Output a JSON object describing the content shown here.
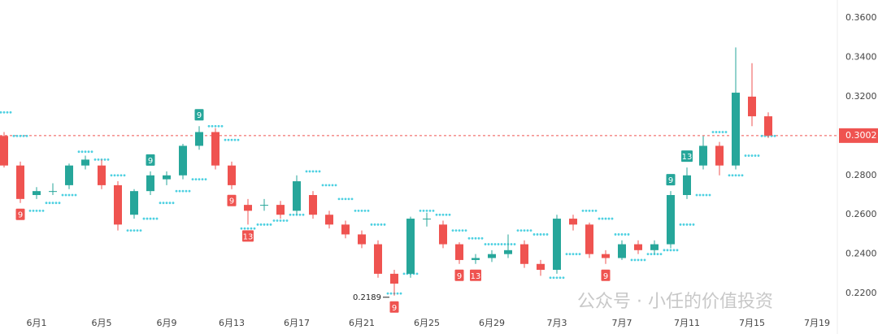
{
  "chart_data": {
    "type": "candlestick",
    "x": [
      -1,
      0,
      1,
      2,
      3,
      4,
      5,
      6,
      7,
      8,
      9,
      10,
      11,
      12,
      13,
      14,
      15,
      16,
      17,
      18,
      19,
      20,
      21,
      22,
      23,
      24,
      25,
      26,
      27,
      28,
      29,
      30,
      31,
      32,
      33,
      34,
      35,
      36,
      37,
      38,
      39,
      40,
      41,
      42,
      43,
      44,
      45,
      46
    ],
    "open": [
      0.3,
      0.285,
      0.27,
      0.272,
      0.275,
      0.285,
      0.285,
      0.275,
      0.26,
      0.272,
      0.278,
      0.28,
      0.295,
      0.302,
      0.285,
      0.265,
      0.265,
      0.265,
      0.262,
      0.27,
      0.26,
      0.255,
      0.25,
      0.245,
      0.23,
      0.23,
      0.258,
      0.255,
      0.245,
      0.237,
      0.238,
      0.24,
      0.245,
      0.235,
      0.232,
      0.258,
      0.255,
      0.24,
      0.238,
      0.245,
      0.242,
      0.245,
      0.27,
      0.285,
      0.295,
      0.285,
      0.32,
      0.31
    ],
    "high": [
      0.302,
      0.287,
      0.274,
      0.276,
      0.286,
      0.29,
      0.288,
      0.277,
      0.273,
      0.282,
      0.282,
      0.296,
      0.305,
      0.304,
      0.287,
      0.268,
      0.268,
      0.267,
      0.28,
      0.272,
      0.262,
      0.257,
      0.252,
      0.247,
      0.232,
      0.259,
      0.261,
      0.257,
      0.246,
      0.24,
      0.242,
      0.25,
      0.247,
      0.237,
      0.26,
      0.26,
      0.256,
      0.242,
      0.247,
      0.247,
      0.247,
      0.272,
      0.284,
      0.3,
      0.297,
      0.345,
      0.337,
      0.312
    ],
    "low": [
      0.284,
      0.266,
      0.268,
      0.27,
      0.273,
      0.283,
      0.273,
      0.252,
      0.258,
      0.27,
      0.275,
      0.278,
      0.293,
      0.283,
      0.273,
      0.255,
      0.262,
      0.258,
      0.26,
      0.258,
      0.253,
      0.248,
      0.243,
      0.228,
      0.2189,
      0.228,
      0.254,
      0.243,
      0.235,
      0.235,
      0.236,
      0.238,
      0.233,
      0.229,
      0.23,
      0.252,
      0.238,
      0.235,
      0.237,
      0.24,
      0.24,
      0.243,
      0.268,
      0.283,
      0.28,
      0.283,
      0.305,
      0.299
    ],
    "close": [
      0.285,
      0.268,
      0.272,
      0.272,
      0.285,
      0.288,
      0.275,
      0.255,
      0.272,
      0.28,
      0.28,
      0.295,
      0.302,
      0.285,
      0.275,
      0.262,
      0.265,
      0.26,
      0.277,
      0.26,
      0.255,
      0.25,
      0.245,
      0.23,
      0.225,
      0.258,
      0.258,
      0.245,
      0.237,
      0.238,
      0.24,
      0.242,
      0.235,
      0.232,
      0.258,
      0.255,
      0.24,
      0.238,
      0.245,
      0.242,
      0.245,
      0.27,
      0.28,
      0.295,
      0.285,
      0.322,
      0.31,
      0.3002
    ],
    "up_color": "#26a69a",
    "down_color": "#ef5350",
    "sar": {
      "color": "#4dd0e1",
      "values": [
        0.312,
        0.3,
        0.262,
        0.266,
        0.27,
        0.292,
        0.288,
        0.28,
        0.252,
        0.258,
        0.266,
        0.272,
        0.278,
        0.305,
        0.298,
        0.253,
        0.255,
        0.257,
        0.26,
        0.282,
        0.275,
        0.268,
        0.262,
        0.255,
        0.22,
        0.23,
        0.262,
        0.26,
        0.252,
        0.248,
        0.245,
        0.245,
        0.252,
        0.25,
        0.228,
        0.24,
        0.262,
        0.258,
        0.25,
        0.237,
        0.24,
        0.242,
        0.255,
        0.27,
        0.302,
        0.28,
        0.29,
        0.3
      ]
    },
    "td_labels": [
      {
        "x": 0,
        "count": 9,
        "side": "below"
      },
      {
        "x": 8,
        "count": 9,
        "side": "above"
      },
      {
        "x": 11,
        "count": 9,
        "side": "above"
      },
      {
        "x": 13,
        "count": 9,
        "side": "below"
      },
      {
        "x": 14,
        "count": 13,
        "side": "below"
      },
      {
        "x": 23,
        "count": 9,
        "side": "below"
      },
      {
        "x": 27,
        "count": 9,
        "side": "below"
      },
      {
        "x": 28,
        "count": 13,
        "side": "below"
      },
      {
        "x": 36,
        "count": 9,
        "side": "below"
      },
      {
        "x": 40,
        "count": 9,
        "side": "above"
      },
      {
        "x": 41,
        "count": 13,
        "side": "above"
      }
    ],
    "last_price": {
      "value": 0.3002,
      "label": "0.3002"
    },
    "low_marker": {
      "x": 23,
      "value": 0.2189,
      "label": "0.2189"
    },
    "xlim": [
      -1.25,
      50.25
    ],
    "ylim": [
      0.2089,
      0.36
    ],
    "xticks": [
      {
        "value": 1,
        "label": "6月1"
      },
      {
        "value": 5,
        "label": "6月5"
      },
      {
        "value": 9,
        "label": "6月9"
      },
      {
        "value": 13,
        "label": "6月13"
      },
      {
        "value": 17,
        "label": "6月17"
      },
      {
        "value": 21,
        "label": "6月21"
      },
      {
        "value": 25,
        "label": "6月25"
      },
      {
        "value": 29,
        "label": "6月29"
      },
      {
        "value": 33,
        "label": "7月3"
      },
      {
        "value": 37,
        "label": "7月7"
      },
      {
        "value": 41,
        "label": "7月11"
      },
      {
        "value": 45,
        "label": "7月15"
      },
      {
        "value": 49,
        "label": "7月19"
      }
    ],
    "yticks": [
      {
        "value": 0.22,
        "label": "0.2200"
      },
      {
        "value": 0.24,
        "label": "0.2400"
      },
      {
        "value": 0.26,
        "label": "0.2600"
      },
      {
        "value": 0.28,
        "label": "0.2800"
      },
      {
        "value": 0.3,
        "label": "0.3000"
      },
      {
        "value": 0.32,
        "label": "0.3200"
      },
      {
        "value": 0.34,
        "label": "0.3400"
      },
      {
        "value": 0.36,
        "label": "0.3600"
      }
    ],
    "watermark": "公众号 · 小任的价值投资"
  }
}
